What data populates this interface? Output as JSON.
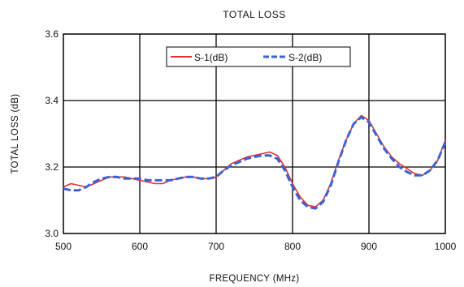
{
  "chart_data": {
    "type": "line",
    "title": "TOTAL LOSS",
    "xlabel": "FREQUENCY (MHz)",
    "ylabel": "TOTAL LOSS (dB)",
    "xlim": [
      500,
      1000
    ],
    "ylim": [
      3.0,
      3.6
    ],
    "x_ticks": [
      "500",
      "600",
      "700",
      "800",
      "900",
      "1000"
    ],
    "y_ticks": [
      "3.0",
      "3.2",
      "3.4",
      "3.6"
    ],
    "grid": true,
    "legend_position": "top-center",
    "series": [
      {
        "name": "S-1(dB)",
        "color": "#e03030",
        "style": "solid",
        "x": [
          500,
          510,
          520,
          530,
          540,
          550,
          560,
          570,
          580,
          590,
          600,
          610,
          620,
          630,
          640,
          650,
          660,
          670,
          680,
          690,
          700,
          710,
          720,
          730,
          740,
          750,
          760,
          770,
          780,
          790,
          800,
          810,
          820,
          830,
          840,
          850,
          860,
          870,
          880,
          890,
          900,
          910,
          920,
          930,
          940,
          950,
          960,
          970,
          980,
          990,
          1000
        ],
        "y": [
          3.14,
          3.15,
          3.145,
          3.14,
          3.15,
          3.16,
          3.17,
          3.17,
          3.17,
          3.165,
          3.16,
          3.155,
          3.15,
          3.15,
          3.16,
          3.165,
          3.17,
          3.17,
          3.165,
          3.165,
          3.17,
          3.19,
          3.21,
          3.22,
          3.23,
          3.235,
          3.24,
          3.245,
          3.235,
          3.2,
          3.15,
          3.11,
          3.085,
          3.08,
          3.1,
          3.15,
          3.22,
          3.28,
          3.33,
          3.355,
          3.34,
          3.3,
          3.26,
          3.23,
          3.21,
          3.195,
          3.18,
          3.175,
          3.19,
          3.22,
          3.28
        ]
      },
      {
        "name": "S-2(dB)",
        "color": "#3a62d6",
        "style": "dashed",
        "x": [
          500,
          510,
          520,
          530,
          540,
          550,
          560,
          570,
          580,
          590,
          600,
          610,
          620,
          630,
          640,
          650,
          660,
          670,
          680,
          690,
          700,
          710,
          720,
          730,
          740,
          750,
          760,
          770,
          780,
          790,
          800,
          810,
          820,
          830,
          840,
          850,
          860,
          870,
          880,
          890,
          900,
          910,
          920,
          930,
          940,
          950,
          960,
          970,
          980,
          990,
          1000
        ],
        "y": [
          3.135,
          3.13,
          3.13,
          3.14,
          3.155,
          3.165,
          3.17,
          3.17,
          3.165,
          3.165,
          3.165,
          3.16,
          3.16,
          3.16,
          3.16,
          3.165,
          3.17,
          3.17,
          3.165,
          3.165,
          3.17,
          3.19,
          3.205,
          3.215,
          3.225,
          3.23,
          3.235,
          3.235,
          3.225,
          3.19,
          3.14,
          3.1,
          3.08,
          3.075,
          3.095,
          3.145,
          3.215,
          3.28,
          3.33,
          3.35,
          3.335,
          3.295,
          3.255,
          3.225,
          3.2,
          3.185,
          3.175,
          3.175,
          3.19,
          3.22,
          3.275
        ]
      }
    ]
  }
}
